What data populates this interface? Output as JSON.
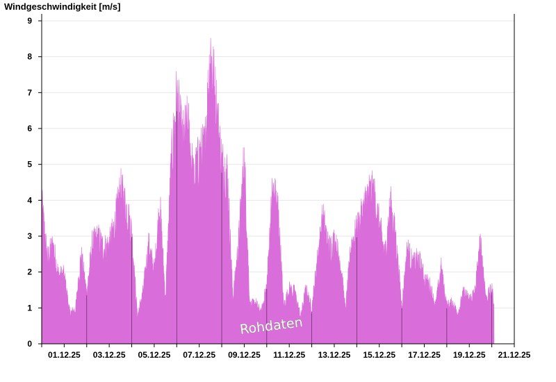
{
  "chart_data": {
    "type": "area",
    "title": "Windgeschwindigkeit [m/s]",
    "xlabel": "",
    "ylabel": "",
    "ylim": [
      0,
      9
    ],
    "grid": true,
    "fill_color": "#d96dd9",
    "x_tick_labels": [
      "01.12.25",
      "03.12.25",
      "05.12.25",
      "07.12.25",
      "09.12.25",
      "11.12.25",
      "13.12.25",
      "15.12.25",
      "17.12.25",
      "19.12.25",
      "21.12.25"
    ],
    "y_tick_labels": [
      "0",
      "1",
      "2",
      "3",
      "4",
      "5",
      "6",
      "7",
      "8",
      "9"
    ],
    "watermark": "Rohdaten",
    "x_range_days": [
      0,
      21
    ],
    "x_unit": "days since 01.12.25 00:00",
    "series": [
      {
        "x": [
          0,
          0.25,
          0.5,
          0.75,
          1.0,
          1.25,
          1.5,
          1.75,
          2.0,
          2.25,
          2.5,
          2.75,
          3.0,
          3.25,
          3.5,
          3.75,
          4.0,
          4.25,
          4.5,
          4.75,
          5.0,
          5.25,
          5.5,
          5.75,
          6.0,
          6.25,
          6.5,
          6.75,
          7.0,
          7.25,
          7.5,
          7.75,
          8.0,
          8.25,
          8.5,
          8.75,
          9.0,
          9.25,
          9.5,
          9.75,
          10.0,
          10.25,
          10.5,
          10.75,
          11.0,
          11.25,
          11.5,
          11.75,
          12.0,
          12.25,
          12.5,
          12.75,
          13.0,
          13.25,
          13.5,
          13.75,
          14.0,
          14.25,
          14.5,
          14.75,
          15.0,
          15.25,
          15.5,
          15.75,
          16.0,
          16.25,
          16.5,
          16.75,
          17.0,
          17.25,
          17.5,
          17.75,
          18.0,
          18.25,
          18.5,
          18.75,
          19.0,
          19.25,
          19.5,
          19.75,
          20.0,
          20.1
        ],
        "values": [
          4.1,
          2.5,
          2.9,
          2.0,
          2.0,
          0.9,
          1.0,
          2.6,
          1.5,
          2.9,
          3.1,
          2.8,
          2.9,
          3.5,
          4.5,
          4.0,
          3.3,
          0.8,
          1.5,
          2.9,
          2.1,
          4.1,
          1.3,
          5.2,
          7.2,
          5.9,
          6.4,
          4.8,
          5.5,
          5.7,
          8.6,
          7.0,
          5.3,
          5.0,
          1.3,
          3.0,
          5.5,
          1.1,
          1.2,
          0.9,
          1.7,
          4.5,
          4.0,
          1.1,
          1.6,
          1.5,
          0.8,
          1.6,
          1.0,
          2.5,
          3.7,
          2.8,
          3.0,
          2.5,
          1.0,
          2.9,
          3.3,
          3.8,
          4.4,
          4.4,
          3.5,
          2.6,
          4.1,
          3.0,
          1.1,
          2.8,
          2.3,
          2.5,
          1.9,
          1.7,
          1.1,
          2.2,
          1.1,
          1.2,
          0.9,
          1.5,
          1.3,
          1.5,
          3.0,
          1.3,
          1.6,
          1.2
        ]
      }
    ]
  }
}
